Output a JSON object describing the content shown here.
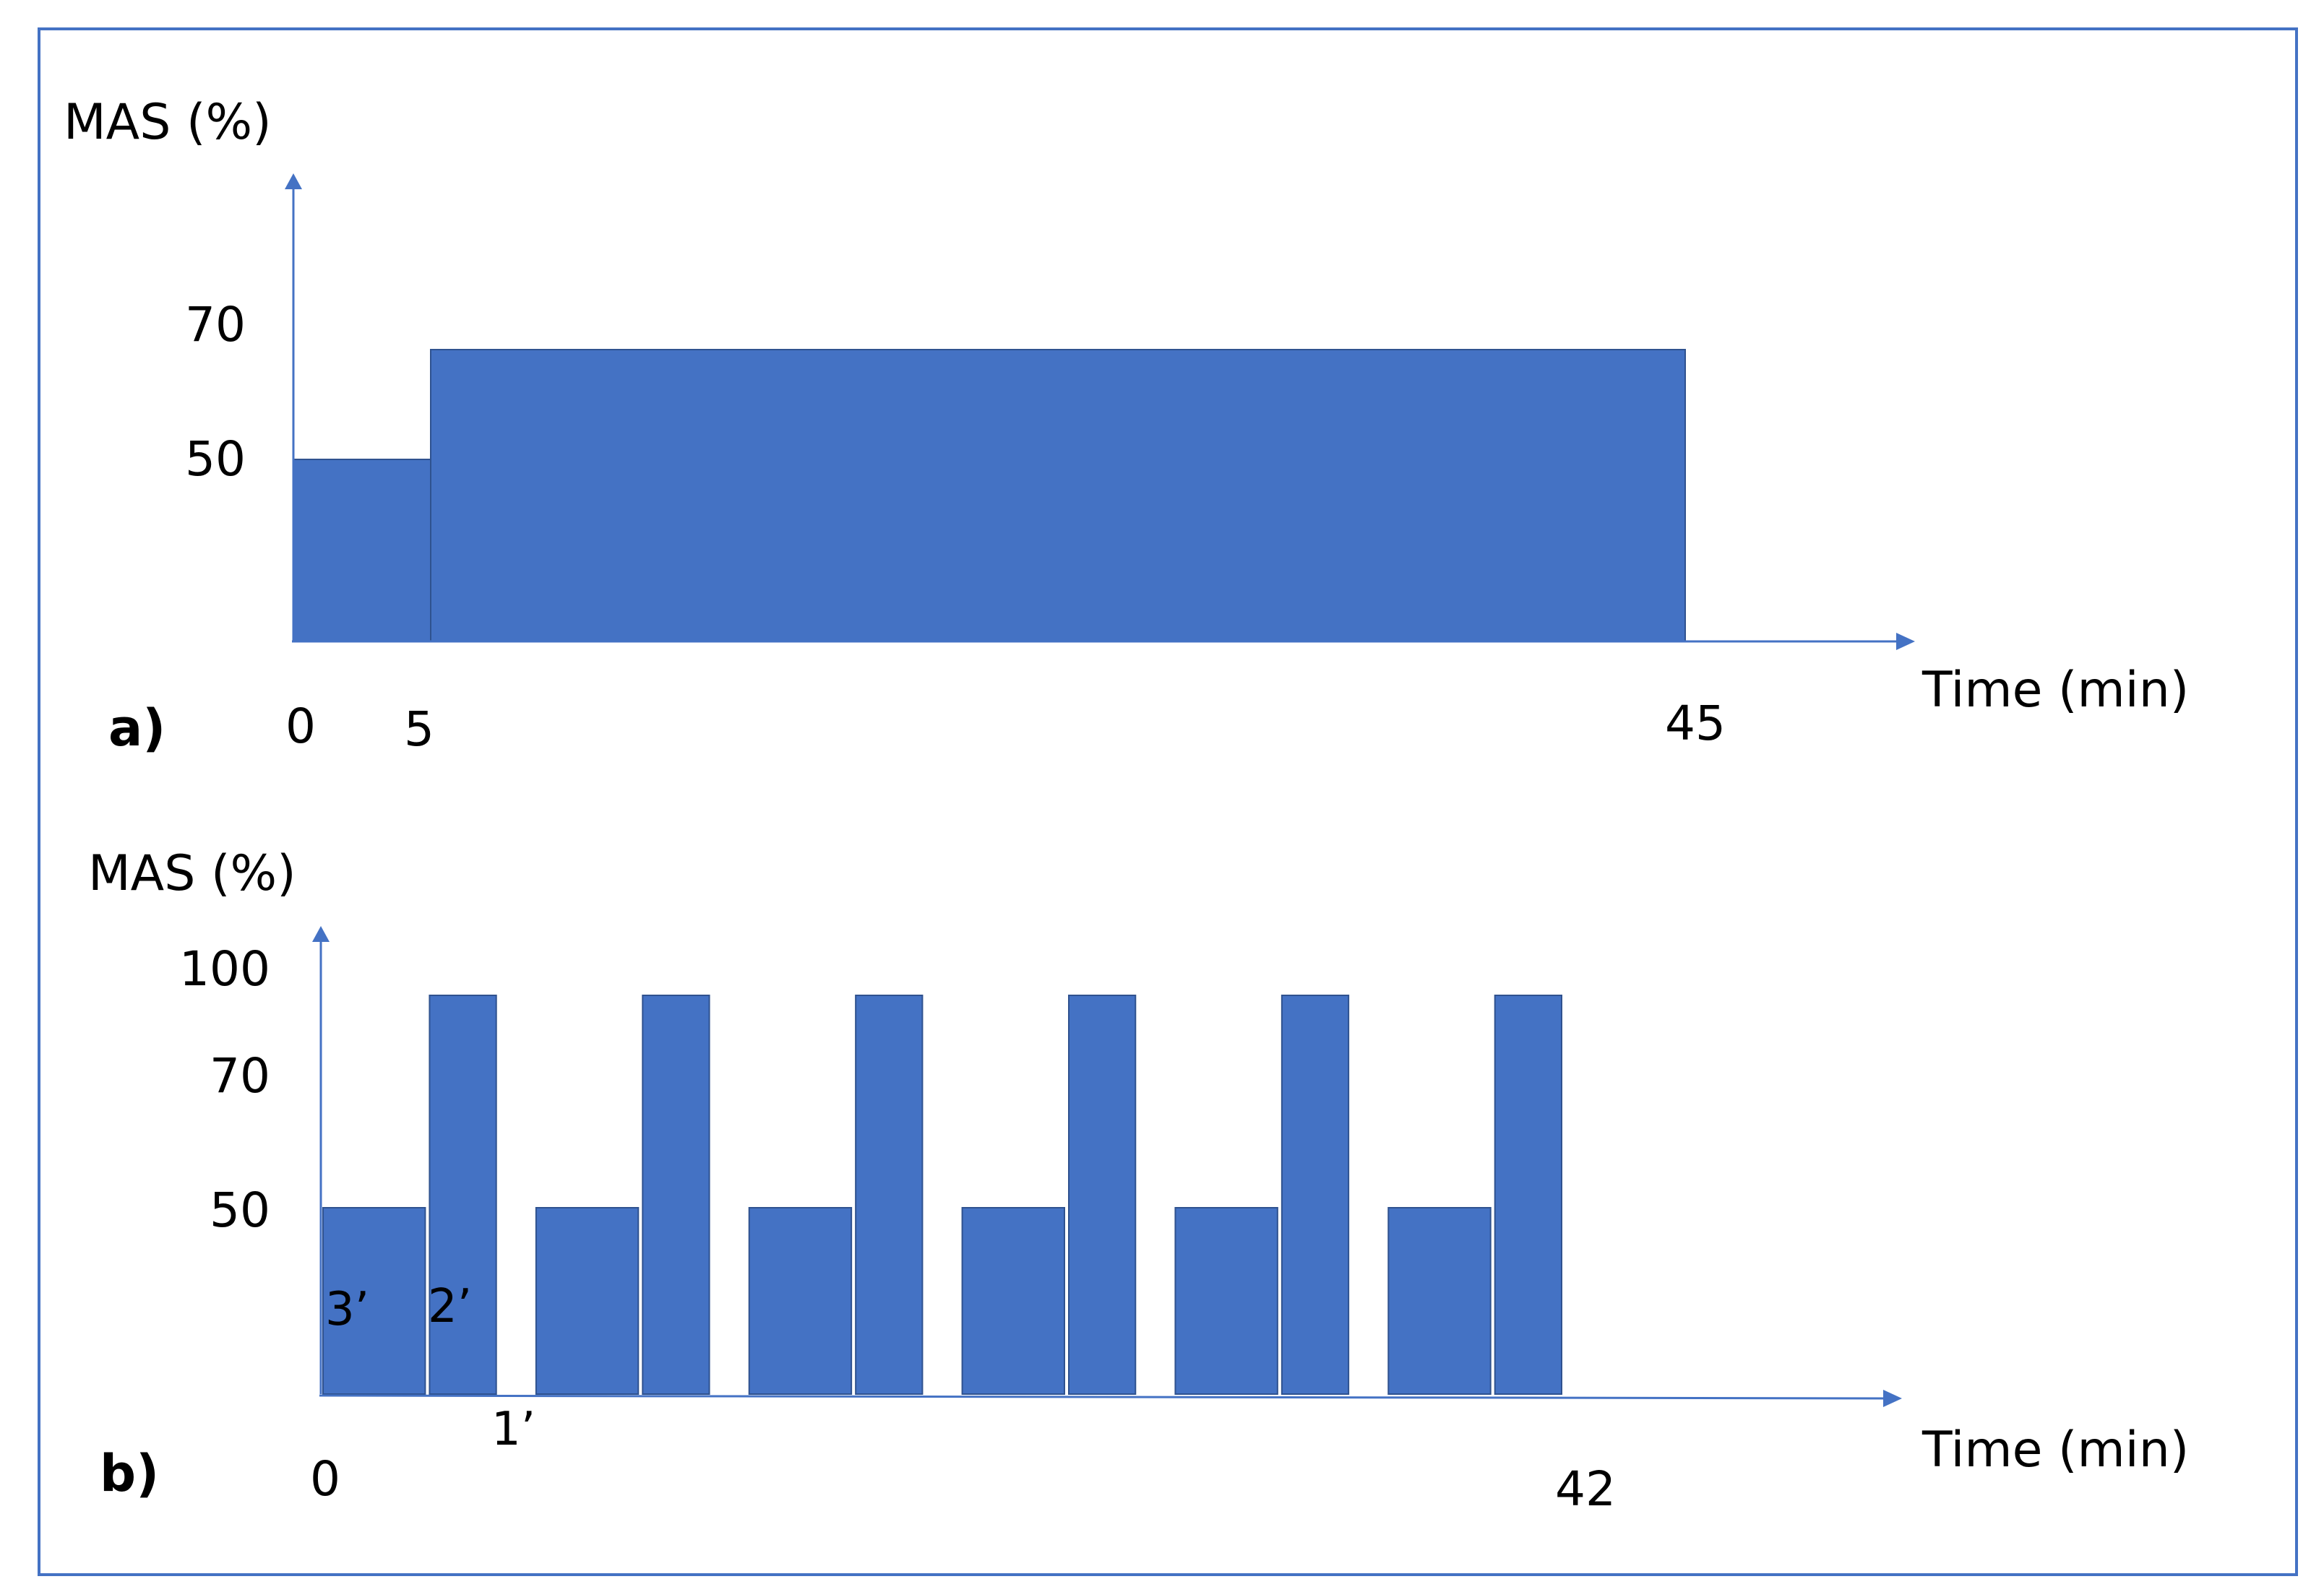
{
  "chart_data": [
    {
      "type": "bar",
      "panel_label": "a)",
      "ylabel": "MAS (%)",
      "xlabel": "Time (min)",
      "xlim": [
        0,
        45
      ],
      "ylim": [
        0,
        75
      ],
      "x_ticks": [
        "0",
        "5",
        "45"
      ],
      "y_ticks": [
        "50",
        "70"
      ],
      "segments": [
        {
          "start": 0,
          "end": 5,
          "value": 50
        },
        {
          "start": 5,
          "end": 45,
          "value": 70
        }
      ],
      "grid": false
    },
    {
      "type": "bar",
      "panel_label": "b)",
      "ylabel": "MAS (%)",
      "xlabel": "Time (min)",
      "xlim": [
        0,
        42
      ],
      "ylim": [
        0,
        100
      ],
      "x_ticks": [
        "0",
        "42"
      ],
      "y_ticks": [
        "50",
        "70",
        "100"
      ],
      "annotations": [
        "3’",
        "2’",
        "1’"
      ],
      "segments": [
        {
          "start": 0,
          "end": 3,
          "value": 50
        },
        {
          "start": 3,
          "end": 5,
          "value": 100
        },
        {
          "start": 6,
          "end": 9,
          "value": 50
        },
        {
          "start": 9,
          "end": 11,
          "value": 100
        },
        {
          "start": 12,
          "end": 15,
          "value": 50
        },
        {
          "start": 15,
          "end": 17,
          "value": 100
        },
        {
          "start": 18,
          "end": 21,
          "value": 50
        },
        {
          "start": 21,
          "end": 23,
          "value": 100
        },
        {
          "start": 24,
          "end": 27,
          "value": 50
        },
        {
          "start": 27,
          "end": 29,
          "value": 100
        },
        {
          "start": 30,
          "end": 33,
          "value": 50
        },
        {
          "start": 33,
          "end": 35,
          "value": 100
        }
      ],
      "grid": false
    }
  ],
  "colors": {
    "bar": "#4472C4",
    "bar_edge": "#2F528F",
    "axis": "#4472C4",
    "frame": "#4472C4"
  }
}
